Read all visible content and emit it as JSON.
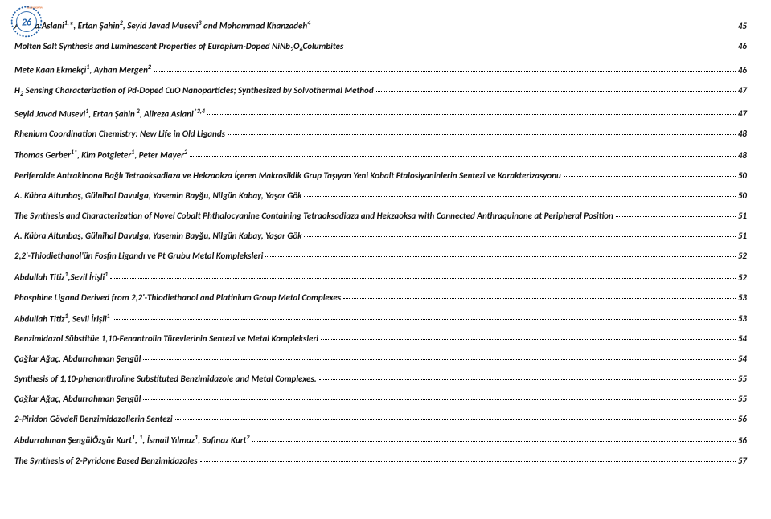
{
  "lines": [
    {
      "html": "Alireza Aslani<sup>1,</sup>*, Ertan Şahin<sup>2</sup>, Seyid Javad Musevi<sup>3</sup> and Mohammad Khanzadeh<sup>4</sup>",
      "page": "45"
    },
    {
      "html": "Molten Salt Synthesis and Luminescent Properties of Europium-Doped NiNb<sub>2</sub>O<sub>6</sub>Columbites",
      "page": "46"
    },
    {
      "html": "Mete Kaan Ekmekçi<sup>1</sup>, Ayhan Mergen<sup>2</sup>",
      "page": "46"
    },
    {
      "html": "H<sub>2</sub> Sensing Characterization of Pd-Doped CuO Nanoparticles; Synthesized by Solvothermal Method",
      "page": "47"
    },
    {
      "html": "Seyid Javad Musevi<sup>1</sup>, Ertan Şahin<sup> 2</sup>, Alireza Aslani<sup>*3,4</sup>",
      "page": "47"
    },
    {
      "html": "Rhenium Coordination Chemistry: New Life in Old Ligands",
      "page": "48"
    },
    {
      "html": "Thomas Gerber<sup>1*</sup>, Kim Potgieter<sup>1</sup>, Peter Mayer<sup>2</sup>",
      "page": "48"
    },
    {
      "html": "Periferalde Antrakinona Bağlı Tetraoksadiaza ve Hekzaokza İçeren Makrosiklik Grup Taşıyan Yeni Kobalt Ftalosiyaninlerin Sentezi ve Karakterizasyonu",
      "page": "50"
    },
    {
      "html": "A. Kübra Altunbaş, Gülnihal Davulga, Yasemin Bayğu, Nilgün Kabay, Yaşar Gök",
      "page": "50"
    },
    {
      "html": "The Synthesis and Characterization of Novel Cobalt Phthalocyanine Containing Tetraoksadiaza and Hekzaoksa with Connected Anthraquinone at Peripheral Position",
      "page": "51"
    },
    {
      "html": "A. Kübra Altunbaş, Gülnihal Davulga, Yasemin Bayğu, Nilgün Kabay, Yaşar Gök",
      "page": "51"
    },
    {
      "html": "2,2'-Thiodiethanol'ün Fosfin Ligandı ve Pt Grubu Metal Kompleksleri",
      "page": "52"
    },
    {
      "html": "Abdullah Titiz<sup>1</sup>,Sevil İrişli<sup>1</sup>",
      "page": "52"
    },
    {
      "html": "Phosphine Ligand Derived from 2,2'-Thiodiethanol and Platinium Group Metal Complexes",
      "page": "53"
    },
    {
      "html": "Abdullah Titiz<sup>1</sup>, Sevil İrişli<sup>1</sup>",
      "page": "53"
    },
    {
      "html": "Benzimidazol Sübstitüe 1,10-Fenantrolin Türevlerinin Sentezi ve Metal Kompleksleri",
      "page": "54"
    },
    {
      "html": "Çağlar Ağaç, Abdurrahman Şengül",
      "page": "54"
    },
    {
      "html": "Synthesis of 1,10-phenanthroline Substituted Benzimidazole and Metal Complexes.",
      "page": "55"
    },
    {
      "html": "Çağlar Ağaç, Abdurrahman Şengül",
      "page": "55"
    },
    {
      "html": "2-Piridon Gövdeli Benzimidazollerin Sentezi",
      "page": "56"
    },
    {
      "html": "Abdurrahman ŞengülÖzgür Kurt<sup>1</sup>, <sup>1</sup>, İsmail Yılmaz<sup>1</sup>, Safinaz Kurt<sup>2</sup>",
      "page": "56"
    },
    {
      "html": "The Synthesis of 2-Pyridone Based Benzimidazoles",
      "page": "57"
    }
  ]
}
